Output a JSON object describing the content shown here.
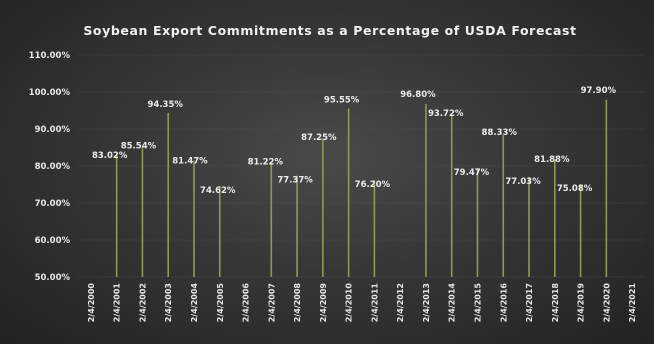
{
  "chart_data": {
    "type": "bar",
    "title": "Soybean Export Commitments as a Percentage of USDA Forecast",
    "xlabel": "",
    "ylabel": "",
    "ylim": [
      50,
      110
    ],
    "yticks": [
      "50.00%",
      "60.00%",
      "70.00%",
      "80.00%",
      "90.00%",
      "100.00%",
      "110.00%"
    ],
    "ytick_values": [
      50,
      60,
      70,
      80,
      90,
      100,
      110
    ],
    "grid": true,
    "categories": [
      "2/4/2000",
      "2/4/2001",
      "2/4/2002",
      "2/4/2003",
      "2/4/2004",
      "2/4/2005",
      "2/4/2006",
      "2/4/2007",
      "2/4/2008",
      "2/4/2009",
      "2/4/2010",
      "2/4/2011",
      "2/4/2012",
      "2/4/2013",
      "2/4/2014",
      "2/4/2015",
      "2/4/2016",
      "2/4/2017",
      "2/4/2018",
      "2/4/2019",
      "2/4/2020",
      "2/4/2021"
    ],
    "values": [
      null,
      83.02,
      85.54,
      94.35,
      81.47,
      74.62,
      null,
      81.22,
      77.37,
      87.25,
      95.55,
      76.2,
      null,
      96.8,
      93.72,
      79.47,
      88.33,
      77.03,
      81.88,
      75.08,
      97.9,
      null
    ],
    "data_labels": [
      "",
      "83.02%",
      "85.54%",
      "94.35%",
      "81.47%",
      "74.62%",
      "",
      "81.22%",
      "77.37%",
      "87.25%",
      "95.55%",
      "76.20%",
      "",
      "96.80%",
      "93.72%",
      "79.47%",
      "88.33%",
      "77.03%",
      "81.88%",
      "75.08%",
      "97.90%",
      ""
    ],
    "colors": {
      "bar": "#8e9a52",
      "text": "#ececec",
      "grid": "#555555"
    }
  }
}
